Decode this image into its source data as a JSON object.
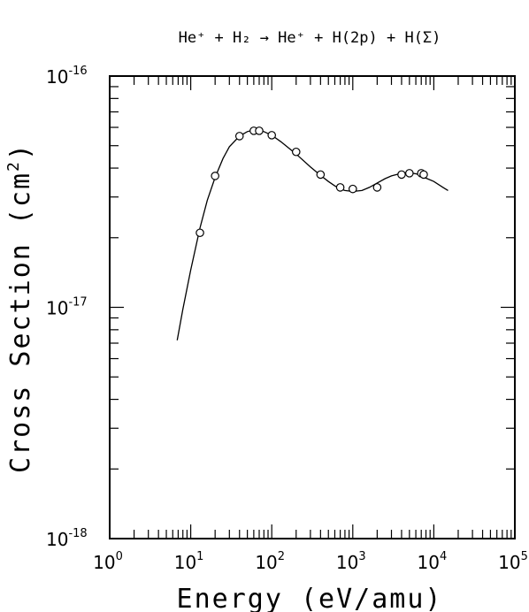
{
  "chart_data": {
    "type": "line",
    "title_text": "He⁺ + H₂ → He⁺ + H(2p) + H(Σ)",
    "xlabel": "Energy (eV/amu)",
    "ylabel_text": "Cross Section (cm",
    "ylabel_sup": "2",
    "ylabel_close": ")",
    "x_scale": "log",
    "y_scale": "log",
    "xlim": [
      1,
      100000
    ],
    "ylim": [
      1e-18,
      1e-16
    ],
    "x_ticks": [
      {
        "base": "10",
        "exp": "0"
      },
      {
        "base": "10",
        "exp": "1"
      },
      {
        "base": "10",
        "exp": "2"
      },
      {
        "base": "10",
        "exp": "3"
      },
      {
        "base": "10",
        "exp": "4"
      },
      {
        "base": "10",
        "exp": "5"
      }
    ],
    "y_ticks": [
      {
        "base": "10",
        "exp": "-18"
      },
      {
        "base": "10",
        "exp": "-17"
      },
      {
        "base": "10",
        "exp": "-16"
      }
    ],
    "grid": false,
    "series": [
      {
        "kind": "fit-curve",
        "x": [
          6.8,
          8,
          10,
          13,
          16,
          20,
          25,
          30,
          40,
          50,
          60,
          70,
          80,
          100,
          130,
          160,
          200,
          300,
          400,
          500,
          600,
          700,
          800,
          1000,
          1300,
          1600,
          2000,
          2500,
          3000,
          4000,
          5000,
          6000,
          7000,
          8000,
          10000,
          13000,
          15000
        ],
        "y": [
          7.2e-18,
          9.8e-18,
          1.45e-17,
          2.2e-17,
          2.9e-17,
          3.65e-17,
          4.4e-17,
          4.95e-17,
          5.5e-17,
          5.75e-17,
          5.85e-17,
          5.83e-17,
          5.75e-17,
          5.55e-17,
          5.2e-17,
          4.9e-17,
          4.6e-17,
          4.05e-17,
          3.72e-17,
          3.5e-17,
          3.35e-17,
          3.25e-17,
          3.2e-17,
          3.17e-17,
          3.2e-17,
          3.3e-17,
          3.45e-17,
          3.6e-17,
          3.7e-17,
          3.8e-17,
          3.82e-17,
          3.78e-17,
          3.72e-17,
          3.62e-17,
          3.5e-17,
          3.3e-17,
          3.2e-17
        ]
      },
      {
        "kind": "measured-points",
        "x": [
          13,
          20,
          40,
          60,
          70,
          100,
          200,
          400,
          700,
          1000,
          2000,
          4000,
          5000,
          7000,
          7500
        ],
        "y": [
          2.1e-17,
          3.7e-17,
          5.5e-17,
          5.8e-17,
          5.8e-17,
          5.55e-17,
          4.7e-17,
          3.75e-17,
          3.3e-17,
          3.25e-17,
          3.3e-17,
          3.75e-17,
          3.8e-17,
          3.8e-17,
          3.75e-17
        ]
      }
    ]
  }
}
